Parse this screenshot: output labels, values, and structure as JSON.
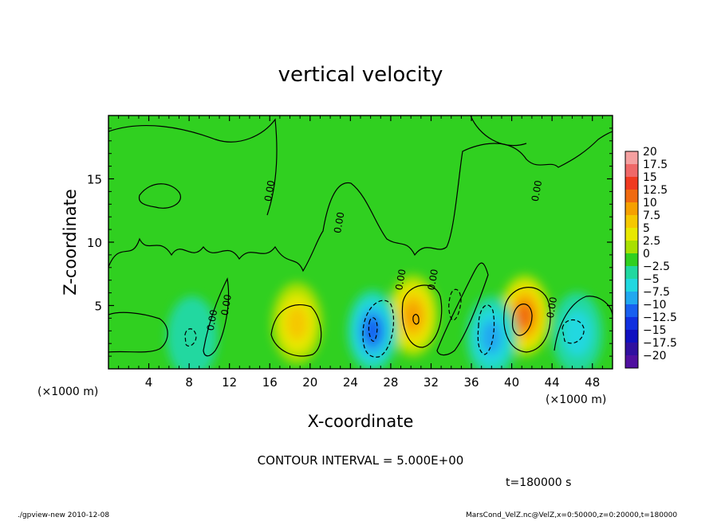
{
  "chart_data": {
    "type": "heatmap",
    "title": "vertical velocity",
    "xlabel": "X-coordinate",
    "ylabel": "Z-coordinate",
    "x_unit_label": "(×1000 m)",
    "y_unit_label": "(×1000 m)",
    "xlim": [
      0,
      50
    ],
    "ylim": [
      0,
      20
    ],
    "x_ticks": [
      4,
      8,
      12,
      16,
      20,
      24,
      28,
      32,
      36,
      40,
      44,
      48
    ],
    "y_ticks": [
      5,
      10,
      15
    ],
    "colorbar": {
      "labels": [
        "20",
        "17.5",
        "15",
        "12.5",
        "10",
        "7.5",
        "5",
        "2.5",
        "0",
        "−2.5",
        "−5",
        "−7.5",
        "−10",
        "−12.5",
        "−15",
        "−17.5",
        "−20"
      ],
      "values": [
        20,
        17.5,
        15,
        12.5,
        10,
        7.5,
        5,
        2.5,
        0,
        -2.5,
        -5,
        -7.5,
        -10,
        -12.5,
        -15,
        -17.5,
        -20
      ],
      "colors": [
        "#f4a0a0",
        "#ef6868",
        "#f03a20",
        "#f06a10",
        "#f5a000",
        "#f5c800",
        "#e8e800",
        "#a8e000",
        "#30d020",
        "#20d8a0",
        "#20d8e0",
        "#20a8f0",
        "#1860f0",
        "#1030e0",
        "#1010c0",
        "#3010a0",
        "#5010a0"
      ]
    },
    "features": [
      {
        "kind": "updraft",
        "x": 18.7,
        "z": 3.6,
        "peak": 7.5
      },
      {
        "kind": "updraft",
        "x": 30.2,
        "z": 4.2,
        "peak": 10
      },
      {
        "kind": "updraft",
        "x": 41.3,
        "z": 4.2,
        "peak": 12.5
      },
      {
        "kind": "downdraft",
        "x": 26.2,
        "z": 3.0,
        "peak": -10
      },
      {
        "kind": "downdraft",
        "x": 38.0,
        "z": 2.5,
        "peak": -7.5
      },
      {
        "kind": "downdraft",
        "x": 46.5,
        "z": 2.8,
        "peak": -5
      },
      {
        "kind": "downdraft",
        "x": 8.3,
        "z": 2.5,
        "peak": -2.5
      }
    ],
    "contour_labels": [
      {
        "text": "0.00",
        "x": 16.3,
        "z": 14.0
      },
      {
        "text": "0.00",
        "x": 23.2,
        "z": 11.5
      },
      {
        "text": "0.00",
        "x": 12.0,
        "z": 5.0
      },
      {
        "text": "0.00",
        "x": 10.6,
        "z": 3.8
      },
      {
        "text": "0.00",
        "x": 29.3,
        "z": 7.0
      },
      {
        "text": "0.00",
        "x": 32.5,
        "z": 7.0
      },
      {
        "text": "0.00",
        "x": 42.8,
        "z": 14.0
      },
      {
        "text": "0.00",
        "x": 44.3,
        "z": 4.8
      }
    ],
    "contour_interval_text": "CONTOUR INTERVAL = 5.000E+00",
    "time_text": "t=180000 s"
  },
  "footer": {
    "left": "./gpview-new   2010-12-08",
    "right": "MarsCond_VelZ.nc@VelZ,x=0:50000,z=0:20000,t=180000"
  }
}
